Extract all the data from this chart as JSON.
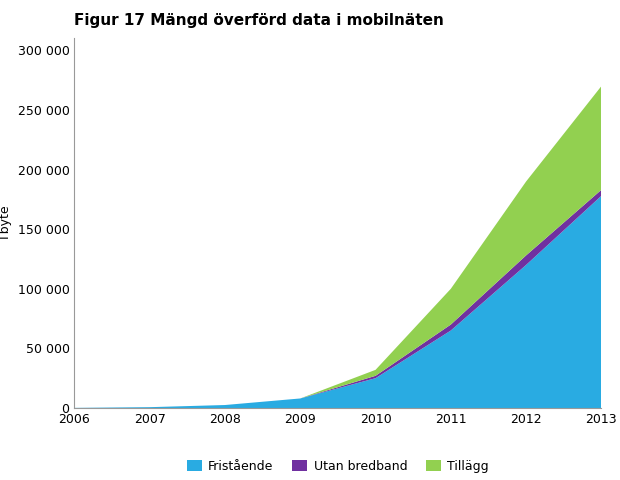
{
  "title": "Figur 17 Mängd överförd data i mobilnäten",
  "ylabel": "Tbyte",
  "years": [
    2006,
    2007,
    2008,
    2009,
    2010,
    2011,
    2012,
    2013
  ],
  "fristående": [
    100,
    700,
    2500,
    8000,
    25000,
    65000,
    120000,
    178000
  ],
  "utan_bredband": [
    0,
    0,
    0,
    0,
    2000,
    5000,
    8000,
    5000
  ],
  "tillägg": [
    0,
    0,
    0,
    0,
    5000,
    30000,
    62000,
    87000
  ],
  "colors": {
    "fristående": "#29ABE2",
    "utan_bredband": "#7030A0",
    "tillägg": "#92D050"
  },
  "legend_labels": [
    "Fristående",
    "Utan bredband",
    "Tillägg"
  ],
  "ylim": [
    0,
    310000
  ],
  "yticks": [
    0,
    50000,
    100000,
    150000,
    200000,
    250000,
    300000
  ],
  "xlim": [
    2006,
    2013
  ],
  "xticks": [
    2006,
    2007,
    2008,
    2009,
    2010,
    2011,
    2012,
    2013
  ],
  "background_color": "#ffffff",
  "title_fontsize": 11,
  "axis_fontsize": 9
}
